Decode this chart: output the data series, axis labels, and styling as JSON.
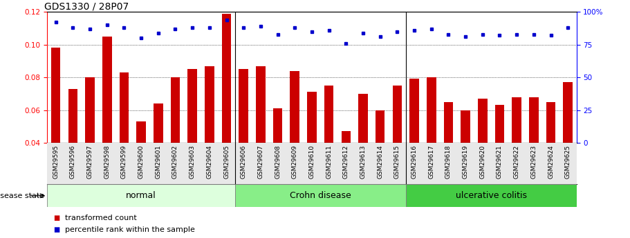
{
  "title": "GDS1330 / 28P07",
  "categories": [
    "GSM29595",
    "GSM29596",
    "GSM29597",
    "GSM29598",
    "GSM29599",
    "GSM29600",
    "GSM29601",
    "GSM29602",
    "GSM29603",
    "GSM29604",
    "GSM29605",
    "GSM29606",
    "GSM29607",
    "GSM29608",
    "GSM29609",
    "GSM29610",
    "GSM29611",
    "GSM29612",
    "GSM29613",
    "GSM29614",
    "GSM29615",
    "GSM29616",
    "GSM29617",
    "GSM29618",
    "GSM29619",
    "GSM29620",
    "GSM29621",
    "GSM29622",
    "GSM29623",
    "GSM29624",
    "GSM29625"
  ],
  "bar_values": [
    0.098,
    0.073,
    0.08,
    0.105,
    0.083,
    0.053,
    0.064,
    0.08,
    0.085,
    0.087,
    0.119,
    0.085,
    0.087,
    0.061,
    0.084,
    0.071,
    0.075,
    0.047,
    0.07,
    0.06,
    0.075,
    0.079,
    0.08,
    0.065,
    0.06,
    0.067,
    0.063,
    0.068,
    0.068,
    0.065,
    0.077
  ],
  "dot_values": [
    92,
    88,
    87,
    90,
    88,
    80,
    84,
    87,
    88,
    88,
    94,
    88,
    89,
    83,
    88,
    85,
    86,
    76,
    84,
    81,
    85,
    86,
    87,
    83,
    81,
    83,
    82,
    83,
    83,
    82,
    88
  ],
  "bar_color": "#cc0000",
  "dot_color": "#0000cc",
  "ylim_left": [
    0.04,
    0.12
  ],
  "ylim_right": [
    0,
    100
  ],
  "yticks_left": [
    0.04,
    0.06,
    0.08,
    0.1,
    0.12
  ],
  "yticks_right": [
    0,
    25,
    50,
    75,
    100
  ],
  "ytick_right_labels": [
    "0",
    "25",
    "50",
    "75",
    "100%"
  ],
  "grid_values": [
    0.06,
    0.08,
    0.1
  ],
  "group_configs": [
    {
      "label": "normal",
      "start": 0,
      "end": 11,
      "color": "#ddffdd"
    },
    {
      "label": "Crohn disease",
      "start": 11,
      "end": 21,
      "color": "#88ee88"
    },
    {
      "label": "ulcerative colitis",
      "start": 21,
      "end": 31,
      "color": "#44cc44"
    }
  ],
  "disease_state_label": "disease state",
  "legend_bar_label": "transformed count",
  "legend_dot_label": "percentile rank within the sample",
  "title_fontsize": 10,
  "tick_fontsize": 7.5,
  "xticklabel_fontsize": 6.5,
  "group_label_fontsize": 9,
  "legend_fontsize": 8
}
